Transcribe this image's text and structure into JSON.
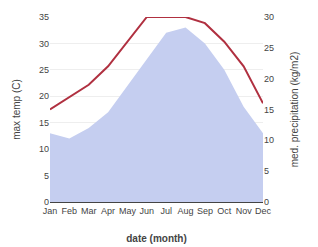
{
  "chart_data": {
    "type": "line",
    "categories": [
      "Jan",
      "Feb",
      "Mar",
      "Apr",
      "May",
      "Jun",
      "Jul",
      "Aug",
      "Sep",
      "Oct",
      "Nov",
      "Dec"
    ],
    "series": [
      {
        "type": "area",
        "color": "#c5cef0",
        "values": [
          13,
          12,
          14,
          17,
          22,
          27,
          32,
          33,
          30,
          25,
          18,
          13
        ]
      },
      {
        "type": "line",
        "color": "#b03040",
        "axis": "y2",
        "values": [
          15,
          17,
          19,
          22,
          26,
          30,
          30,
          30,
          29,
          26,
          22,
          16
        ]
      }
    ],
    "xlabel": "date (month)",
    "ylabel": "max temp (C)",
    "y2label": "med. precipitation (kg/m2)",
    "ylim": [
      0,
      35
    ],
    "yticks": [
      0,
      5,
      10,
      15,
      20,
      25,
      30,
      35
    ],
    "y2lim": [
      0,
      30
    ],
    "y2ticks": [
      0,
      5,
      10,
      15,
      20,
      25,
      30
    ],
    "grid": true
  }
}
